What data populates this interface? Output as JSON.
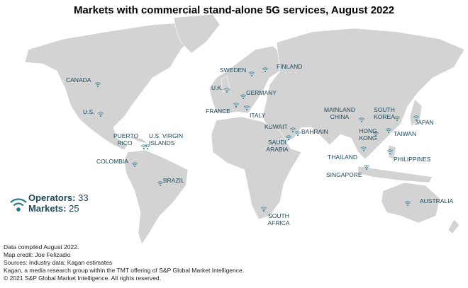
{
  "title": "Markets with commercial stand-alone 5G services, August 2022",
  "markets": [
    "CANADA",
    "U.S.",
    "PUERTO RICO",
    "U.S. VIRGIN ISLANDS",
    "COLOMBIA",
    "BRAZIL",
    "SWEDEN",
    "FINLAND",
    "U.K.",
    "GERMANY",
    "FRANCE",
    "ITALY",
    "KUWAIT",
    "BAHRAIN",
    "SAUDI ARABIA",
    "SOUTH AFRICA",
    "MAINLAND CHINA",
    "SOUTH KOREA",
    "JAPAN",
    "HONG KONG",
    "TAIWAN",
    "THAILAND",
    "PHILIPPINES",
    "SINGAPORE",
    "AUSTRALIA"
  ],
  "legend": {
    "operators": {
      "label": "Operators:",
      "value": 33
    },
    "markets": {
      "label": "Markets:",
      "value": 25
    }
  },
  "footer": [
    "Data compiled August 2022.",
    "Map credit: Joe Felizadio",
    "Sources: Industry data; Kagan estimates",
    "Kagan, a media research group within the TMT offering of S&P Global Market Intelligence.",
    "© 2021 S&P Global Market Intelligence. All rights reserved."
  ]
}
